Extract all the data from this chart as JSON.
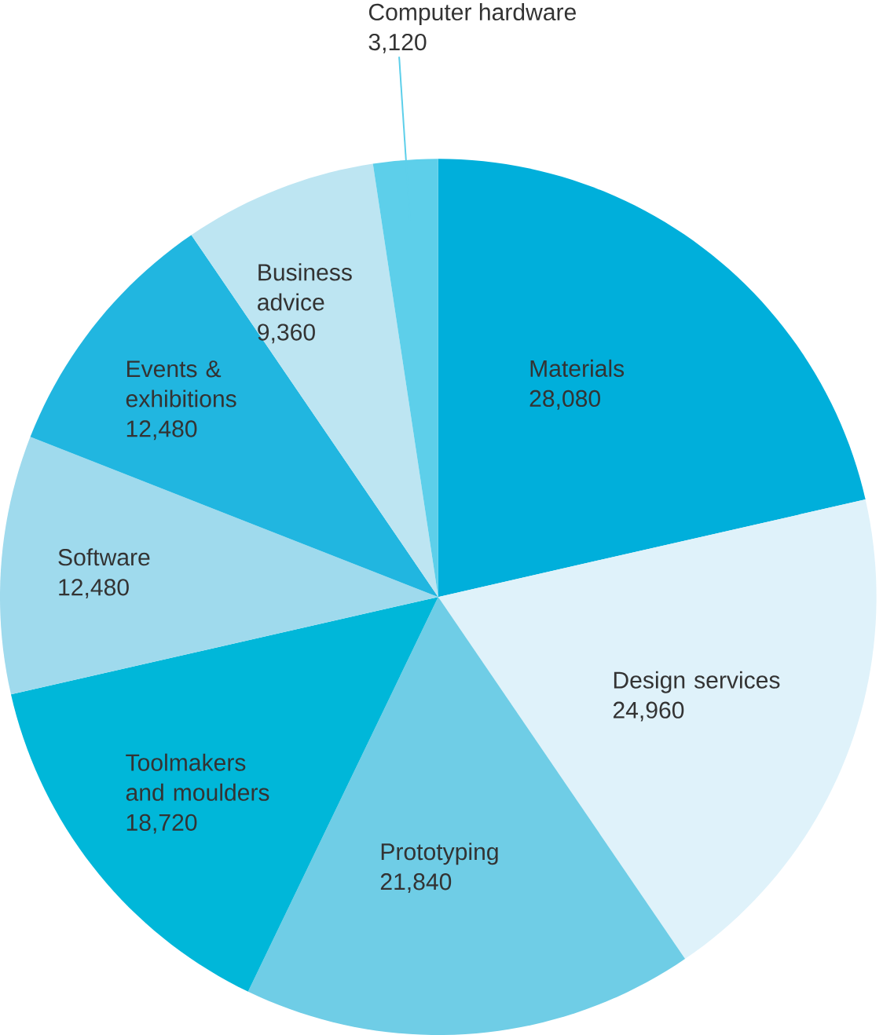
{
  "chart_data": {
    "type": "pie",
    "categories": [
      "Materials",
      "Design services",
      "Prototyping",
      "Toolmakers and moulders",
      "Software",
      "Events & exhibitions",
      "Business advice",
      "Computer hardware"
    ],
    "values": [
      28080,
      24960,
      21840,
      18720,
      12480,
      12480,
      9360,
      3120
    ],
    "colors": [
      "#00afdb",
      "#dff2fa",
      "#6fcde6",
      "#00b7d9",
      "#9fdaed",
      "#21b6e0",
      "#bde5f2",
      "#5dcfea"
    ],
    "value_labels": [
      "28,080",
      "24,960",
      "21,840",
      "18,720",
      "12,480",
      "12,480",
      "9,360",
      "3,120"
    ]
  }
}
